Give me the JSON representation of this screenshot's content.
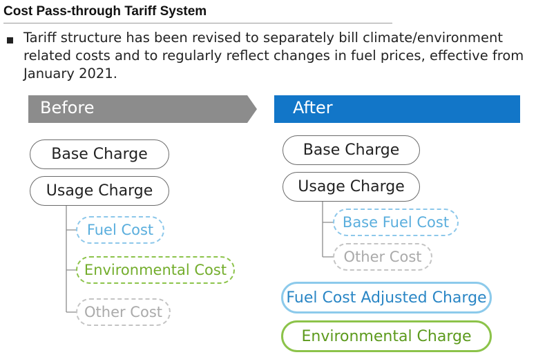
{
  "title": "Cost Pass-through Tariff System",
  "description": "Tariff structure has been revised to separately bill climate/environment related costs and to regularly reflect changes in fuel prices, effective from January 2021.",
  "before": {
    "header": "Before",
    "base_charge": "Base Charge",
    "usage_charge": "Usage Charge",
    "sub_items": [
      "Fuel Cost",
      "Environmental Cost",
      "Other Cost"
    ]
  },
  "after": {
    "header": "After",
    "base_charge": "Base Charge",
    "usage_charge": "Usage Charge",
    "sub_items": [
      "Base Fuel Cost",
      "Other Cost"
    ],
    "separate_charges": [
      "Fuel Cost Adjusted Charge",
      "Environmental Charge"
    ]
  },
  "colors": {
    "before_header": "#8c8c8c",
    "after_header": "#1276c8",
    "fuel_blue": "#8ccaeb",
    "environment_green": "#8cc34a",
    "other_gray": "#c4c4c4"
  }
}
